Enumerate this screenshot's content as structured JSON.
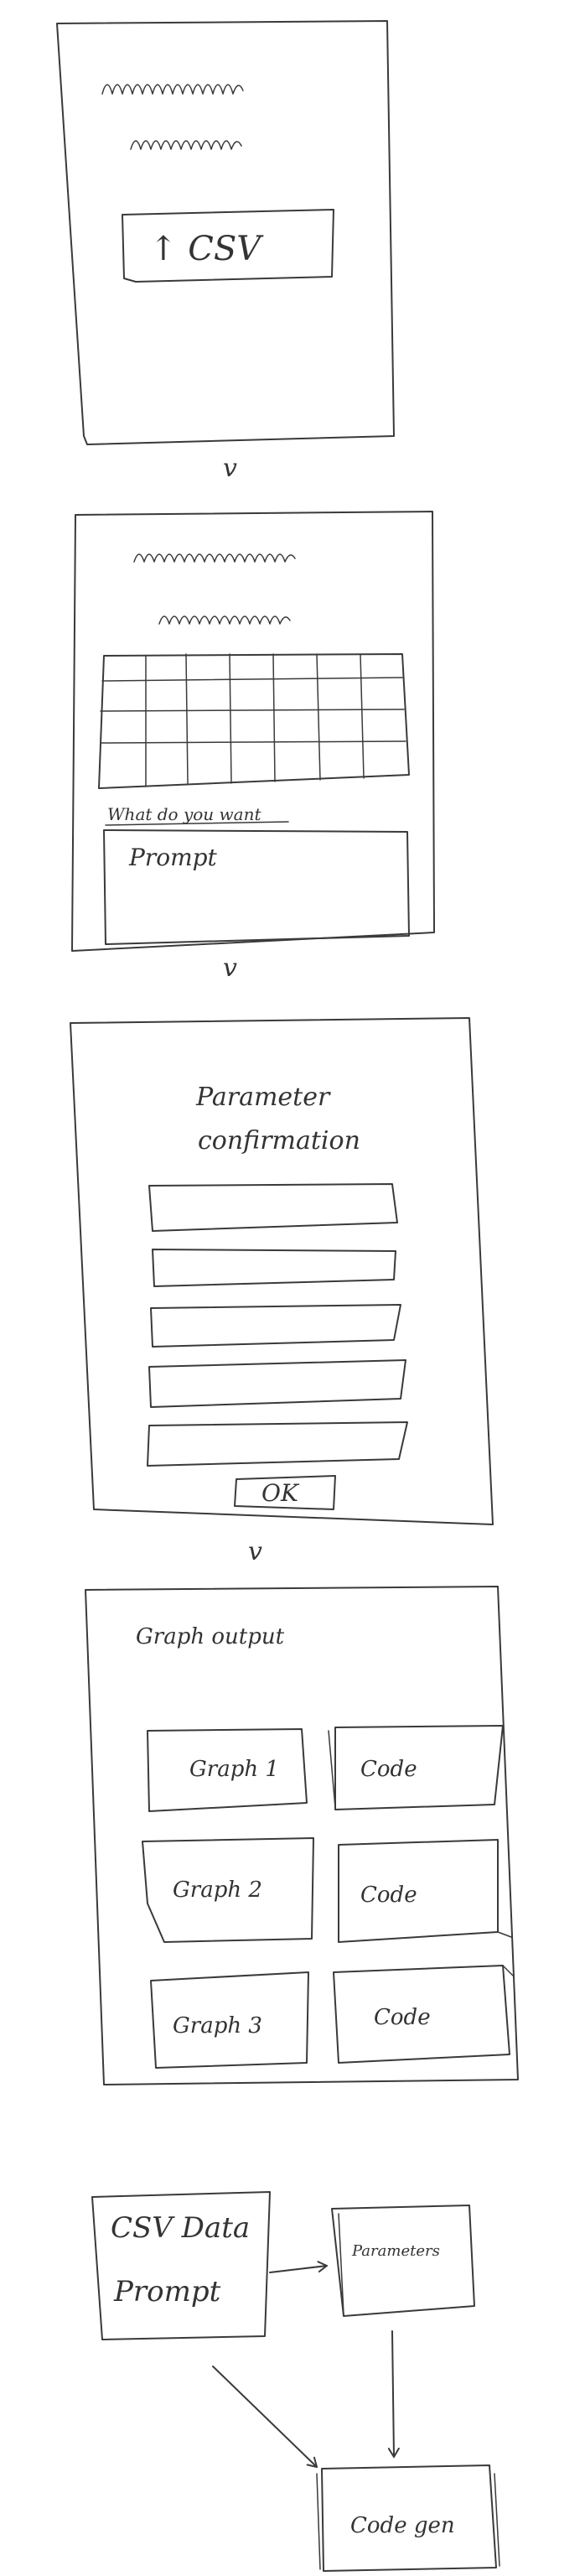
{
  "screens": {
    "upload": {
      "button_label": "↑ CSV"
    },
    "preview": {
      "question": "What do you want",
      "prompt_placeholder": "Prompt"
    },
    "params": {
      "title_line1": "Parameter",
      "title_line2": "confirmation",
      "ok_label": "OK",
      "field_count": 5
    },
    "output": {
      "title": "Graph output",
      "rows": [
        {
          "graph": "Graph 1",
          "code": "Code"
        },
        {
          "graph": "Graph 2",
          "code": "Code"
        },
        {
          "graph": "Graph 3",
          "code": "Code"
        }
      ]
    }
  },
  "separator_glyph": "v",
  "flow": {
    "input_line1": "CSV Data",
    "input_line2": "Prompt",
    "params_node": "Parameters",
    "codegen_node": "Code gen"
  }
}
